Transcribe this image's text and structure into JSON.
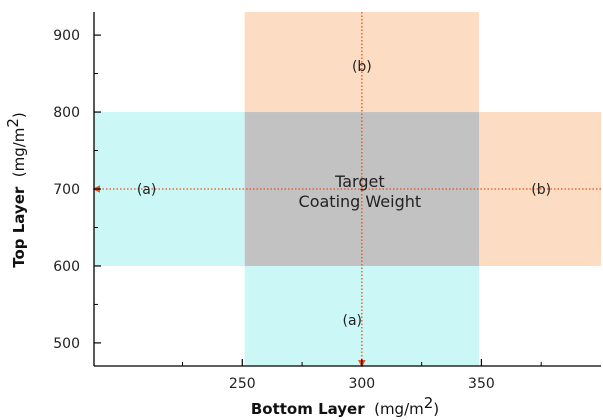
{
  "chart_data": {
    "type": "region-diagram",
    "xlabel": "Bottom Layer",
    "xunit": "(mg/m",
    "xunit_exp": "2",
    "xunit_close": ")",
    "ylabel": "Top Layer",
    "yunit": "(mg/m",
    "yunit_exp": "2",
    "yunit_close": ")",
    "xlim": [
      188,
      400
    ],
    "ylim": [
      470,
      930
    ],
    "x_ticks": [
      250,
      300,
      350
    ],
    "x_minor": [
      225,
      275,
      325,
      375
    ],
    "y_ticks": [
      500,
      600,
      700,
      800,
      900
    ],
    "y_minor": [
      550,
      650,
      750,
      850
    ],
    "target": {
      "x_range": [
        251,
        349
      ],
      "y_range": [
        600,
        800
      ],
      "label_line1": "Target",
      "label_line2": "Coating Weight",
      "color": "#c2c2c2"
    },
    "regions": [
      {
        "id": "a-left",
        "label": "(a)",
        "x_range": [
          188,
          251
        ],
        "y_range": [
          600,
          800
        ],
        "color": "#ccf7f7"
      },
      {
        "id": "a-bottom",
        "label": "(a)",
        "x_range": [
          251,
          349
        ],
        "y_range": [
          470,
          600
        ],
        "color": "#ccf7f7"
      },
      {
        "id": "b-top",
        "label": "(b)",
        "x_range": [
          251,
          349
        ],
        "y_range": [
          800,
          930
        ],
        "color": "#fcdcc2"
      },
      {
        "id": "b-right",
        "label": "(b)",
        "x_range": [
          349,
          400
        ],
        "y_range": [
          600,
          800
        ],
        "color": "#fcdcc2"
      }
    ],
    "label_positions": {
      "a-left": [
        210,
        700
      ],
      "b-right": [
        375,
        700
      ],
      "b-top": [
        300,
        860
      ],
      "a-bottom": [
        296,
        530
      ]
    },
    "arrow_color": "#e8501e",
    "arrows": [
      {
        "id": "horizontal",
        "from": [
          400,
          700
        ],
        "to": [
          188,
          700
        ]
      },
      {
        "id": "vertical",
        "from": [
          300,
          930
        ],
        "to": [
          300,
          470
        ]
      }
    ]
  }
}
